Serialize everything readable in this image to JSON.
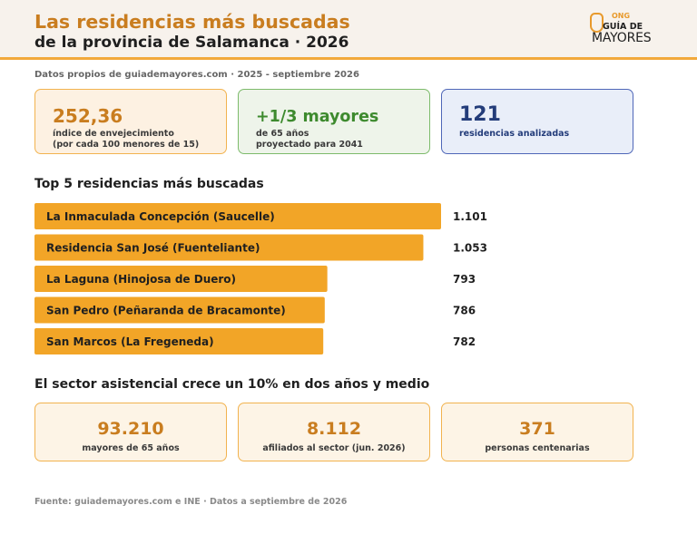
{
  "header": {
    "title_line1": "Las residencias más buscadas",
    "title_line2": "de la provincia de Salamanca · 2026",
    "logo": {
      "ong": "ONG",
      "guia": "GUÍA DE",
      "mayores": "MAYORES"
    }
  },
  "subheader": "Datos propios de guiademayores.com · 2025 - septiembre 2026",
  "cards": [
    {
      "value": "252,36",
      "line1": "índice de envejecimiento",
      "line2": "(por cada 100 menores de 15)"
    },
    {
      "value": "+1/3 mayores",
      "line1": "de 65 años",
      "line2": "proyectado para 2041"
    },
    {
      "value": "121",
      "line1": "residencias analizadas",
      "line2": ""
    }
  ],
  "section1_title": "Top 5 residencias más buscadas",
  "chart_data": {
    "type": "bar",
    "orientation": "horizontal",
    "title": "Top 5 residencias más buscadas",
    "categories": [
      "La Inmaculada Concepción (Saucelle)",
      "Residencia San José (Fuenteliante)",
      "La Laguna (Hinojosa de Duero)",
      "San Pedro (Peñaranda de Bracamonte)",
      "San Marcos (La Fregeneda)"
    ],
    "values": [
      1101,
      1053,
      793,
      786,
      782
    ],
    "value_labels": [
      "1.101",
      "1.053",
      "793",
      "786",
      "782"
    ],
    "bar_color": "#f2a527",
    "xlim": [
      0,
      1101
    ]
  },
  "section2_title": "El sector asistencial crece un 10% en dos años y medio",
  "stats": [
    {
      "value": "93.210",
      "label": "mayores de 65 años"
    },
    {
      "value": "8.112",
      "label": "afiliados al sector (jun. 2026)"
    },
    {
      "value": "371",
      "label": "personas centenarias"
    }
  ],
  "footer": "Fuente: guiademayores.com e INE · Datos a septiembre de 2026",
  "colors": {
    "accent": "#c97d1f",
    "bar": "#f2a527",
    "green": "#3d8a2e",
    "blue": "#233c7a"
  }
}
